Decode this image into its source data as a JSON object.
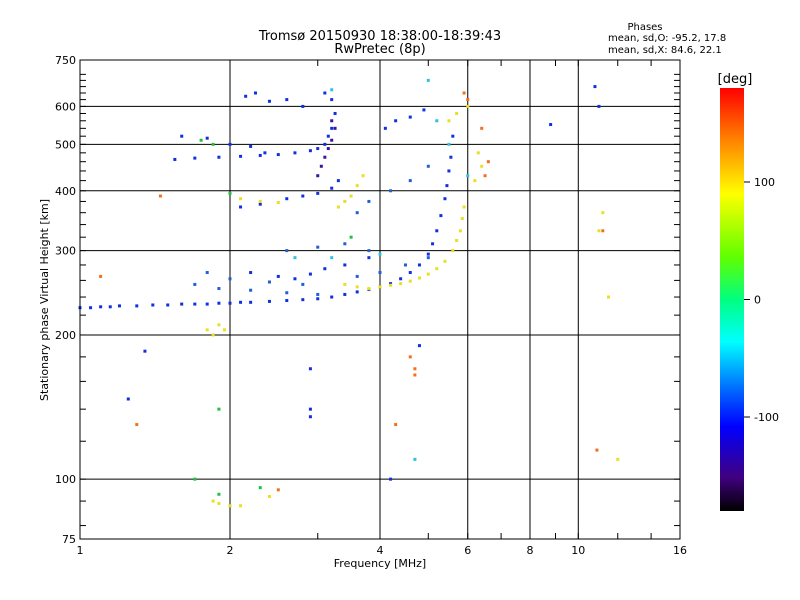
{
  "chart_data": {
    "type": "scatter",
    "title": "Tromsø 20150930 18:38:00-18:39:43",
    "subtitle": "RwPretec (8p)",
    "xlabel": "Frequency [MHz]",
    "ylabel": "Stationary phase Virtual Height [km]",
    "xscale": "log",
    "yscale": "log",
    "xlim": [
      1,
      16
    ],
    "ylim": [
      75,
      750
    ],
    "xticks": [
      1,
      2,
      4,
      6,
      8,
      10,
      16
    ],
    "yticks": [
      75,
      100,
      200,
      300,
      400,
      500,
      600,
      750
    ],
    "grid": true,
    "stats": {
      "heading": "Phases",
      "line1": "mean, sd,O: -95.2, 17.8",
      "line2": "mean, sd,X:  84.6, 22.1"
    },
    "colorbar": {
      "label": "[deg]",
      "range": [
        -180,
        180
      ],
      "ticks": [
        "100",
        "0",
        "-100"
      ],
      "tick_values": [
        100,
        0,
        -100
      ]
    },
    "series": [
      {
        "mode": "O",
        "color": "#1030e0",
        "points": [
          [
            1.0,
            228
          ],
          [
            1.05,
            228
          ],
          [
            1.1,
            229
          ],
          [
            1.15,
            229
          ],
          [
            1.2,
            230
          ],
          [
            1.3,
            230
          ],
          [
            1.4,
            231
          ],
          [
            1.5,
            231
          ],
          [
            1.6,
            232
          ],
          [
            1.7,
            232
          ],
          [
            1.8,
            232
          ],
          [
            1.9,
            233
          ],
          [
            2.0,
            233
          ],
          [
            2.1,
            234
          ],
          [
            2.2,
            234
          ],
          [
            2.4,
            235
          ],
          [
            2.6,
            236
          ],
          [
            2.8,
            237
          ],
          [
            3.0,
            238
          ],
          [
            3.2,
            240
          ],
          [
            3.4,
            243
          ],
          [
            3.6,
            246
          ],
          [
            3.8,
            249
          ],
          [
            4.0,
            252
          ],
          [
            4.2,
            256
          ],
          [
            4.4,
            262
          ],
          [
            4.6,
            270
          ],
          [
            4.8,
            280
          ],
          [
            5.0,
            295
          ],
          [
            5.1,
            310
          ],
          [
            5.2,
            330
          ],
          [
            5.3,
            355
          ],
          [
            5.4,
            385
          ],
          [
            5.45,
            410
          ],
          [
            5.5,
            440
          ],
          [
            5.55,
            470
          ],
          [
            5.6,
            520
          ],
          [
            1.55,
            465
          ],
          [
            1.7,
            468
          ],
          [
            1.9,
            470
          ],
          [
            2.1,
            472
          ],
          [
            2.3,
            474
          ],
          [
            2.5,
            476
          ],
          [
            2.7,
            480
          ],
          [
            2.9,
            485
          ],
          [
            3.0,
            490
          ],
          [
            3.1,
            500
          ],
          [
            3.15,
            520
          ],
          [
            3.2,
            540
          ],
          [
            3.25,
            580
          ],
          [
            3.2,
            620
          ],
          [
            3.1,
            640
          ],
          [
            1.6,
            520
          ],
          [
            1.8,
            515
          ],
          [
            2.0,
            500
          ],
          [
            2.2,
            495
          ],
          [
            2.35,
            480
          ],
          [
            2.2,
            270
          ],
          [
            2.5,
            265
          ],
          [
            2.7,
            262
          ],
          [
            2.9,
            268
          ],
          [
            3.1,
            275
          ],
          [
            3.4,
            280
          ],
          [
            3.8,
            290
          ],
          [
            2.15,
            630
          ],
          [
            2.25,
            640
          ],
          [
            2.4,
            615
          ],
          [
            2.6,
            620
          ],
          [
            2.8,
            600
          ],
          [
            2.1,
            370
          ],
          [
            2.3,
            375
          ],
          [
            2.6,
            385
          ],
          [
            2.8,
            390
          ],
          [
            3.0,
            395
          ],
          [
            3.2,
            405
          ],
          [
            3.3,
            420
          ],
          [
            4.1,
            540
          ],
          [
            4.3,
            560
          ],
          [
            4.6,
            570
          ],
          [
            4.9,
            590
          ],
          [
            2.9,
            170
          ],
          [
            2.9,
            140
          ],
          [
            2.9,
            135
          ],
          [
            4.8,
            190
          ],
          [
            4.2,
            100
          ],
          [
            1.35,
            185
          ],
          [
            1.25,
            147
          ],
          [
            10.8,
            660
          ],
          [
            8.8,
            550
          ],
          [
            11.0,
            600
          ]
        ]
      },
      {
        "mode": "X",
        "color": "#e8e020",
        "points": [
          [
            3.8,
            250
          ],
          [
            4.0,
            252
          ],
          [
            4.2,
            254
          ],
          [
            4.4,
            256
          ],
          [
            4.6,
            259
          ],
          [
            4.8,
            263
          ],
          [
            5.0,
            268
          ],
          [
            5.2,
            275
          ],
          [
            5.4,
            285
          ],
          [
            5.6,
            300
          ],
          [
            5.7,
            315
          ],
          [
            5.8,
            330
          ],
          [
            5.85,
            350
          ],
          [
            5.9,
            370
          ],
          [
            3.4,
            255
          ],
          [
            3.6,
            252
          ],
          [
            3.3,
            370
          ],
          [
            3.4,
            380
          ],
          [
            3.5,
            390
          ],
          [
            3.6,
            410
          ],
          [
            3.7,
            430
          ],
          [
            1.8,
            205
          ],
          [
            1.85,
            200
          ],
          [
            1.9,
            210
          ],
          [
            1.95,
            205
          ],
          [
            2.1,
            385
          ],
          [
            2.3,
            380
          ],
          [
            2.5,
            378
          ],
          [
            1.85,
            90
          ],
          [
            1.9,
            89
          ],
          [
            2.0,
            88
          ],
          [
            2.1,
            88
          ],
          [
            2.4,
            92
          ],
          [
            5.7,
            580
          ],
          [
            6.0,
            600
          ],
          [
            5.5,
            560
          ],
          [
            6.2,
            420
          ],
          [
            6.4,
            450
          ],
          [
            6.3,
            480
          ],
          [
            11.0,
            330
          ],
          [
            12.0,
            110
          ],
          [
            11.5,
            240
          ],
          [
            11.2,
            360
          ]
        ]
      },
      {
        "mode": "X",
        "color": "#f07020",
        "points": [
          [
            5.9,
            640
          ],
          [
            6.0,
            620
          ],
          [
            6.4,
            540
          ],
          [
            6.6,
            460
          ],
          [
            6.5,
            430
          ],
          [
            4.6,
            180
          ],
          [
            4.7,
            170
          ],
          [
            4.7,
            165
          ],
          [
            4.3,
            130
          ],
          [
            2.5,
            95
          ],
          [
            1.45,
            390
          ],
          [
            1.1,
            265
          ],
          [
            1.3,
            130
          ],
          [
            10.9,
            115
          ],
          [
            11.2,
            330
          ]
        ]
      },
      {
        "mode": "O",
        "color": "#20c040",
        "points": [
          [
            1.75,
            510
          ],
          [
            1.85,
            500
          ],
          [
            2.0,
            395
          ],
          [
            1.9,
            140
          ],
          [
            1.7,
            100
          ],
          [
            3.5,
            320
          ],
          [
            1.9,
            93
          ],
          [
            2.3,
            96
          ]
        ]
      },
      {
        "mode": "O",
        "color": "#2060d0",
        "points": [
          [
            1.7,
            255
          ],
          [
            1.9,
            250
          ],
          [
            2.2,
            248
          ],
          [
            2.6,
            245
          ],
          [
            3.0,
            243
          ],
          [
            1.8,
            270
          ],
          [
            2.0,
            262
          ],
          [
            2.4,
            258
          ],
          [
            2.8,
            255
          ],
          [
            3.6,
            265
          ],
          [
            4.0,
            270
          ],
          [
            4.5,
            280
          ],
          [
            5.0,
            290
          ],
          [
            2.6,
            300
          ],
          [
            3.0,
            305
          ],
          [
            3.4,
            310
          ],
          [
            3.8,
            300
          ],
          [
            3.6,
            360
          ],
          [
            3.8,
            380
          ],
          [
            4.2,
            400
          ],
          [
            4.6,
            420
          ],
          [
            5.0,
            450
          ]
        ]
      },
      {
        "mode": "O",
        "color": "#4010a0",
        "points": [
          [
            3.0,
            430
          ],
          [
            3.05,
            450
          ],
          [
            3.1,
            470
          ],
          [
            3.15,
            490
          ],
          [
            3.2,
            510
          ],
          [
            3.25,
            540
          ],
          [
            3.2,
            560
          ]
        ]
      },
      {
        "mode": "O",
        "color": "#30c0e0",
        "points": [
          [
            2.7,
            290
          ],
          [
            3.2,
            290
          ],
          [
            4.0,
            295
          ],
          [
            4.7,
            110
          ],
          [
            6.0,
            430
          ],
          [
            5.5,
            500
          ],
          [
            5.2,
            560
          ],
          [
            3.2,
            650
          ],
          [
            5.0,
            680
          ]
        ]
      }
    ]
  }
}
